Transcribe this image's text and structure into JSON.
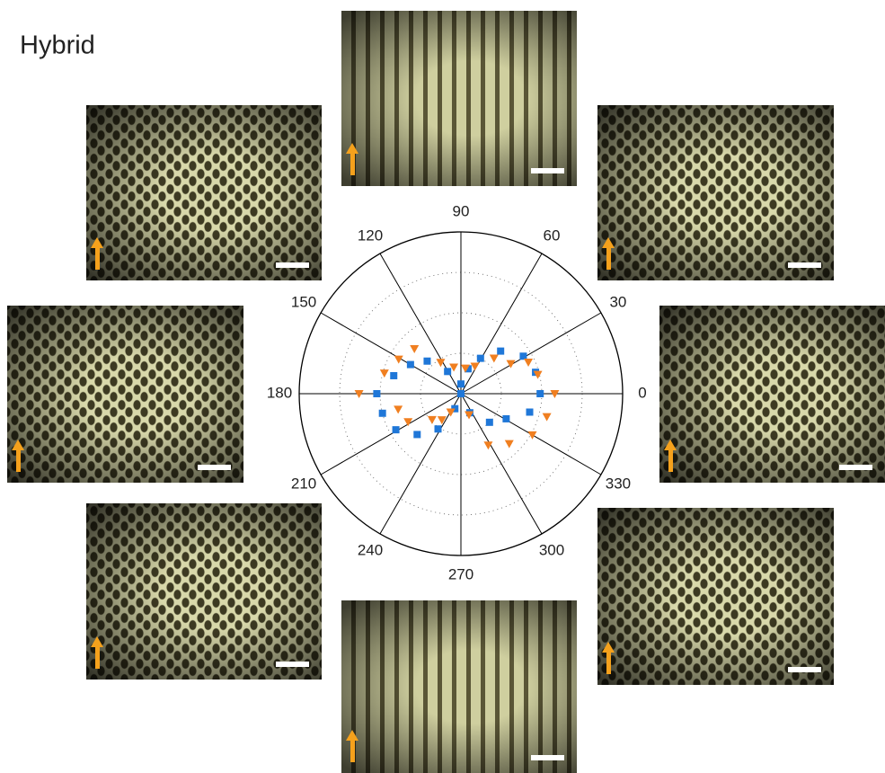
{
  "chart_data": {
    "type": "polar-scatter",
    "title": "Hybrid",
    "thetaticks": [
      0,
      30,
      60,
      90,
      120,
      150,
      180,
      210,
      240,
      270,
      300,
      330
    ],
    "rlim": [
      0,
      1
    ],
    "series": [
      {
        "color": "#1f77d8",
        "marker": "square",
        "theta": [
          0,
          345,
          16,
          31,
          47,
          61,
          74,
          90,
          121,
          136,
          150,
          165,
          180,
          194,
          209,
          223,
          237,
          248,
          295,
          315,
          331,
          0
        ],
        "r": [
          0.49,
          0.44,
          0.48,
          0.45,
          0.36,
          0.25,
          0.16,
          0.06,
          0.16,
          0.29,
          0.36,
          0.43,
          0.52,
          0.5,
          0.46,
          0.37,
          0.26,
          0.1,
          0.13,
          0.25,
          0.32,
          0
        ]
      },
      {
        "color": "#f07f20",
        "marker": "triangle-down",
        "theta": [
          0,
          345,
          14,
          25,
          31,
          47,
          63,
          80,
          105,
          123,
          136,
          151,
          165,
          180,
          194,
          208,
          222,
          234,
          241,
          291,
          298,
          314,
          330
        ],
        "r": [
          0.58,
          0.55,
          0.49,
          0.46,
          0.36,
          0.3,
          0.19,
          0.16,
          0.17,
          0.23,
          0.4,
          0.44,
          0.49,
          0.63,
          0.4,
          0.37,
          0.24,
          0.2,
          0.13,
          0.14,
          0.36,
          0.43,
          0.51
        ]
      }
    ]
  }
}
